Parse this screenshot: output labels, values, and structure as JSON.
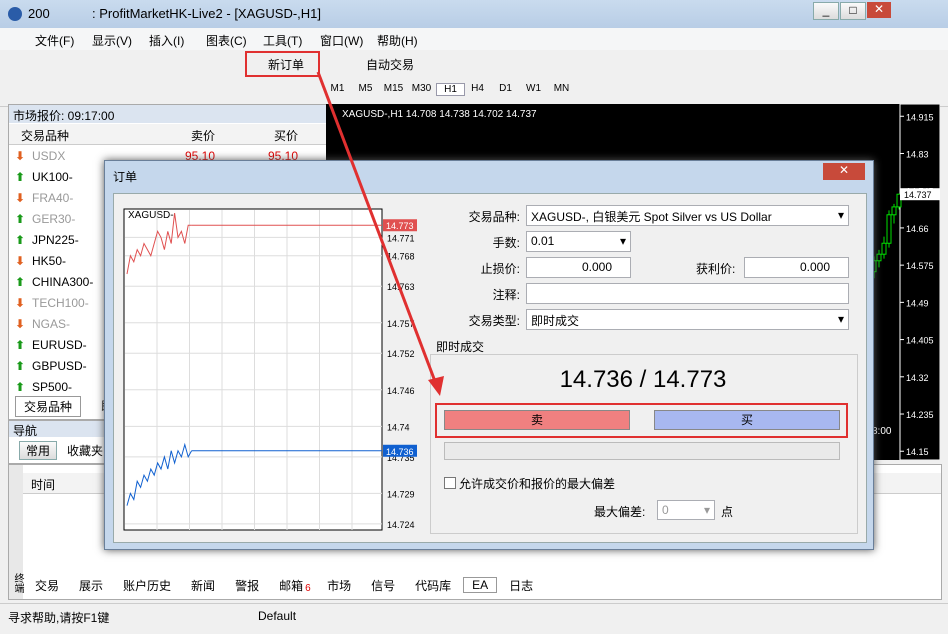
{
  "window": {
    "title_prefix": "200",
    "title": ": ProfitMarketHK-Live2 - [XAGUSD-,H1]"
  },
  "menu": [
    "文件(F)",
    "显示(V)",
    "插入(I)",
    "图表(C)",
    "工具(T)",
    "窗口(W)",
    "帮助(H)"
  ],
  "toolbar": {
    "new_order": "新订单",
    "auto_trading": "自动交易"
  },
  "timeframes": [
    "M1",
    "M5",
    "M15",
    "M30",
    "H1",
    "H4",
    "D1",
    "W1",
    "MN"
  ],
  "market_watch": {
    "header": "市场报价: 09:17:00",
    "columns": [
      "交易品种",
      "卖价",
      "买价"
    ],
    "rows": [
      {
        "symbol": "USDX",
        "bid": "95.10",
        "ask": "95.10",
        "trend": "down",
        "muted": true
      },
      {
        "symbol": "UK100-",
        "trend": "up",
        "muted": false
      },
      {
        "symbol": "FRA40-",
        "trend": "down",
        "muted": true
      },
      {
        "symbol": "GER30-",
        "trend": "up",
        "muted": true
      },
      {
        "symbol": "JPN225-",
        "trend": "up",
        "muted": false
      },
      {
        "symbol": "HK50-",
        "trend": "down",
        "muted": false
      },
      {
        "symbol": "CHINA300-",
        "trend": "up",
        "muted": false
      },
      {
        "symbol": "TECH100-",
        "trend": "down",
        "muted": true
      },
      {
        "symbol": "NGAS-",
        "trend": "down",
        "muted": true
      },
      {
        "symbol": "EURUSD-",
        "trend": "up",
        "muted": false
      },
      {
        "symbol": "GBPUSD-",
        "trend": "up",
        "muted": false
      },
      {
        "symbol": "SP500-",
        "trend": "up",
        "muted": false
      }
    ],
    "tabs": [
      "交易品种",
      "即"
    ]
  },
  "navigator": {
    "header": "导航",
    "tabs": [
      "常用",
      "收藏夹"
    ]
  },
  "main_chart": {
    "symbol": "XAGUSD-,H1",
    "ylim": [
      14.13,
      14.943
    ],
    "yticks": [
      14.915,
      14.83,
      14.745,
      14.66,
      14.575,
      14.49,
      14.405,
      14.32,
      14.235,
      14.15
    ],
    "candles": [
      {
        "o": 14.56,
        "h": 14.595,
        "l": 14.545,
        "c": 14.585
      },
      {
        "o": 14.585,
        "h": 14.61,
        "l": 14.57,
        "c": 14.6
      },
      {
        "o": 14.6,
        "h": 14.64,
        "l": 14.59,
        "c": 14.625
      },
      {
        "o": 14.625,
        "h": 14.7,
        "l": 14.615,
        "c": 14.69
      },
      {
        "o": 14.69,
        "h": 14.715,
        "l": 14.67,
        "c": 14.708
      },
      {
        "o": 14.708,
        "h": 14.738,
        "l": 14.702,
        "c": 14.737
      }
    ],
    "x_label": "3:00"
  },
  "order_dialog": {
    "title": "订单",
    "symbol_label": "交易品种:",
    "symbol": "XAGUSD-, 白银美元 Spot Silver vs US Dollar",
    "volume_label": "手数:",
    "volume": "0.01",
    "sl_label": "止损价:",
    "sl": "0.000",
    "tp_label": "获利价:",
    "tp": "0.000",
    "comment_label": "注释:",
    "type_label": "交易类型:",
    "type": "即时成交",
    "section": "即时成交",
    "quote": "14.736 / 14.773",
    "sell": "卖",
    "buy": "买",
    "deviation_check": "允许成交价和报价的最大偏差",
    "deviation_label": "最大偏差:",
    "deviation": "0",
    "deviation_unit": "点",
    "tick_chart": {
      "title": "XAGUSD-",
      "ylim": [
        14.723,
        14.7755
      ],
      "yticks": [
        14.771,
        14.768,
        14.763,
        14.757,
        14.752,
        14.746,
        14.74,
        14.735,
        14.729,
        14.724
      ],
      "series": [
        {
          "name": "ask",
          "color": "#e05050",
          "values": [
            14.765,
            14.768,
            14.767,
            14.769,
            14.768,
            14.77,
            14.769,
            14.768,
            14.77,
            14.772,
            14.771,
            14.769,
            14.772,
            14.77,
            14.775,
            14.771,
            14.772,
            14.77,
            14.773,
            14.773
          ]
        },
        {
          "name": "bid",
          "color": "#1060d0",
          "values": [
            14.727,
            14.729,
            14.728,
            14.731,
            14.73,
            14.732,
            14.731,
            14.733,
            14.732,
            14.734,
            14.733,
            14.735,
            14.733,
            14.736,
            14.734,
            14.736,
            14.735,
            14.737,
            14.735,
            14.736
          ]
        }
      ]
    }
  },
  "terminal": {
    "column": "时间",
    "side_label": "终端",
    "tabs": [
      {
        "label": "交易"
      },
      {
        "label": "展示"
      },
      {
        "label": "账户历史"
      },
      {
        "label": "新闻"
      },
      {
        "label": "警报"
      },
      {
        "label": "邮箱",
        "badge": "6"
      },
      {
        "label": "市场"
      },
      {
        "label": "信号"
      },
      {
        "label": "代码库"
      },
      {
        "label": "EA"
      },
      {
        "label": "日志"
      }
    ]
  },
  "status_bar": {
    "help": "寻求帮助,请按F1键",
    "profile": "Default"
  }
}
